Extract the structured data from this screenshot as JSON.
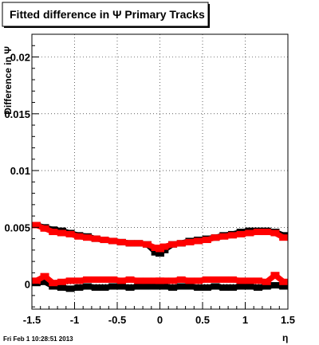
{
  "title": "Fitted difference in Ψ   Primary Tracks",
  "timestamp": "Fri Feb  1 10:28:51 2013",
  "chart_data": {
    "type": "scatter",
    "xlabel": "η",
    "ylabel": "Difference in Ψ",
    "xlim": [
      -1.5,
      1.5
    ],
    "ylim": [
      -0.0022,
      0.022
    ],
    "x_ticks": [
      -1.5,
      -1,
      -0.5,
      0,
      0.5,
      1,
      1.5
    ],
    "x_tick_labels": [
      "-1.5",
      "-1",
      "-0.5",
      "0",
      "0.5",
      "1",
      "1.5"
    ],
    "y_ticks": [
      0,
      0.005,
      0.01,
      0.015,
      0.02
    ],
    "y_tick_labels": [
      "0",
      "0.005",
      "0.01",
      "0.015",
      "0.02"
    ],
    "grid": true,
    "series_colors": [
      "#000000",
      "#ff0000",
      "#000000",
      "#ff0000"
    ],
    "series": [
      {
        "x": [
          -1.45,
          -1.35,
          -1.25,
          -1.15,
          -1.05,
          -0.95,
          -0.85,
          -0.75,
          -0.65,
          -0.55,
          -0.45,
          -0.35,
          -0.25,
          -0.15,
          -0.05,
          0.0,
          0.05,
          0.15,
          0.25,
          0.35,
          0.45,
          0.55,
          0.65,
          0.75,
          0.85,
          0.95,
          1.05,
          1.15,
          1.25,
          1.35,
          1.45
        ],
        "y": [
          0.0052,
          0.005,
          0.0048,
          0.0047,
          0.0045,
          0.0043,
          0.0042,
          0.004,
          0.0039,
          0.0038,
          0.0037,
          0.0036,
          0.0036,
          0.0035,
          0.0028,
          0.0027,
          0.003,
          0.0035,
          0.0036,
          0.0038,
          0.0039,
          0.004,
          0.0041,
          0.0043,
          0.0044,
          0.0046,
          0.0047,
          0.0047,
          0.0047,
          0.0046,
          0.0043
        ]
      },
      {
        "x": [
          -1.45,
          -1.35,
          -1.25,
          -1.15,
          -1.05,
          -0.95,
          -0.85,
          -0.75,
          -0.65,
          -0.55,
          -0.45,
          -0.35,
          -0.25,
          -0.15,
          -0.05,
          0.0,
          0.05,
          0.15,
          0.25,
          0.35,
          0.45,
          0.55,
          0.65,
          0.75,
          0.85,
          0.95,
          1.05,
          1.15,
          1.25,
          1.35,
          1.45
        ],
        "y": [
          0.0052,
          0.0049,
          0.0046,
          0.0045,
          0.0044,
          0.0042,
          0.0041,
          0.004,
          0.0039,
          0.0038,
          0.0037,
          0.0036,
          0.0036,
          0.0035,
          0.0032,
          0.0031,
          0.0033,
          0.0035,
          0.0036,
          0.0037,
          0.0038,
          0.0039,
          0.0041,
          0.0042,
          0.0043,
          0.0044,
          0.0045,
          0.0046,
          0.0046,
          0.0045,
          0.0041
        ]
      },
      {
        "x": [
          -1.45,
          -1.35,
          -1.25,
          -1.15,
          -1.05,
          -0.95,
          -0.85,
          -0.75,
          -0.65,
          -0.55,
          -0.45,
          -0.35,
          -0.25,
          -0.15,
          -0.05,
          0.0,
          0.05,
          0.15,
          0.25,
          0.35,
          0.45,
          0.55,
          0.65,
          0.75,
          0.85,
          0.95,
          1.05,
          1.15,
          1.25,
          1.35,
          1.45
        ],
        "y": [
          0.0001,
          0.0002,
          -0.0002,
          -0.0003,
          -0.0004,
          -0.0003,
          -0.0002,
          -0.0003,
          -0.0003,
          -0.0002,
          -0.0002,
          -0.0003,
          -0.0002,
          -0.0002,
          -0.0002,
          -0.0002,
          -0.0002,
          -0.0003,
          -0.0002,
          -0.0002,
          -0.0003,
          -0.0003,
          -0.0002,
          -0.0003,
          -0.0003,
          -0.0002,
          -0.0002,
          -0.0003,
          -0.0002,
          -0.0001,
          -0.0002
        ]
      },
      {
        "x": [
          -1.45,
          -1.35,
          -1.25,
          -1.15,
          -1.05,
          -0.95,
          -0.85,
          -0.75,
          -0.65,
          -0.55,
          -0.45,
          -0.35,
          -0.25,
          -0.15,
          -0.05,
          0.0,
          0.05,
          0.15,
          0.25,
          0.35,
          0.45,
          0.55,
          0.65,
          0.75,
          0.85,
          0.95,
          1.05,
          1.15,
          1.25,
          1.35,
          1.45
        ],
        "y": [
          0.0003,
          0.0007,
          0.0001,
          0.0002,
          0.0003,
          0.0003,
          0.0004,
          0.0004,
          0.0004,
          0.0004,
          0.0003,
          0.0004,
          0.0003,
          0.0003,
          0.0003,
          0.0003,
          0.0003,
          0.0003,
          0.0004,
          0.0003,
          0.0003,
          0.0004,
          0.0004,
          0.0004,
          0.0004,
          0.0003,
          0.0003,
          0.0003,
          0.0002,
          0.0008,
          0.0002
        ]
      }
    ]
  }
}
